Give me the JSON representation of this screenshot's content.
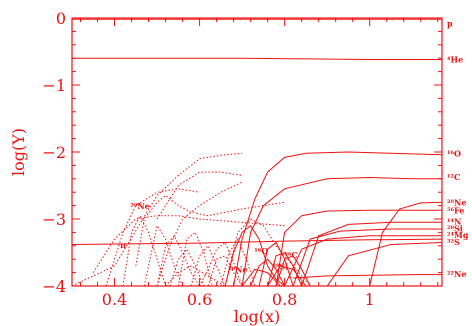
{
  "chart_data": {
    "type": "line",
    "xlabel": "log(x)",
    "ylabel": "log(Y)",
    "xlim": [
      0.3,
      1.17
    ],
    "ylim": [
      -4,
      0
    ],
    "x_ticks": [
      0.4,
      0.6,
      0.8,
      1
    ],
    "x_tick_labels": [
      "0.4",
      "0.6",
      "0.8",
      "1"
    ],
    "y_ticks": [
      0,
      -1,
      -2,
      -3,
      -4
    ],
    "y_tick_labels": [
      "0",
      "−1",
      "−2",
      "−3",
      "−4"
    ],
    "colors": {
      "curves": "#ee1111",
      "axes": "#ee1111",
      "background": "#ffffff"
    },
    "right_labels": [
      {
        "text": "p",
        "y": -0.08
      },
      {
        "text": "⁴He",
        "y": -0.62
      },
      {
        "text": "¹⁶O",
        "y": -2.02
      },
      {
        "text": "¹²C",
        "y": -2.37
      },
      {
        "text": "²⁰Ne",
        "y": -2.75
      },
      {
        "text": "⁵⁶Fe",
        "y": -2.87
      },
      {
        "text": "¹⁴N",
        "y": -3.04
      },
      {
        "text": "²⁸Si",
        "y": -3.14
      },
      {
        "text": "²⁴Mg",
        "y": -3.24
      },
      {
        "text": "³²S",
        "y": -3.34
      },
      {
        "text": "²²Ne",
        "y": -3.82
      }
    ],
    "inline_labels": [
      {
        "text": "²⁰Ne",
        "x": 0.46,
        "y": -2.85
      },
      {
        "text": "n",
        "x": 0.42,
        "y": -3.43
      },
      {
        "text": "¹⁶O",
        "x": 0.745,
        "y": -3.52
      },
      {
        "text": "⁵⁶C",
        "x": 0.815,
        "y": -3.58
      },
      {
        "text": "²⁸Si",
        "x": 0.79,
        "y": -3.75
      },
      {
        "text": "²⁰Ne",
        "x": 0.69,
        "y": -3.8
      }
    ],
    "series": [
      {
        "style": "solid",
        "x": [
          0.3,
          1.17
        ],
        "y": [
          -0.02,
          -0.02
        ]
      },
      {
        "style": "solid",
        "x": [
          0.3,
          0.7,
          1.0,
          1.17
        ],
        "y": [
          -0.6,
          -0.6,
          -0.62,
          -0.62
        ]
      },
      {
        "style": "solid",
        "x": [
          0.3,
          0.6,
          0.8,
          1.0,
          1.17
        ],
        "y": [
          -3.38,
          -3.36,
          -3.33,
          -3.31,
          -3.3
        ]
      },
      {
        "style": "solid",
        "x": [
          0.68,
          0.7,
          0.73,
          0.76,
          0.8,
          0.85,
          0.95,
          1.05,
          1.17
        ],
        "y": [
          -4.0,
          -3.3,
          -2.7,
          -2.3,
          -2.08,
          -2.02,
          -2.0,
          -2.02,
          -2.04
        ]
      },
      {
        "style": "solid",
        "x": [
          0.7,
          0.72,
          0.75,
          0.8,
          0.9,
          1.0,
          1.1,
          1.17
        ],
        "y": [
          -4.0,
          -3.2,
          -2.8,
          -2.55,
          -2.4,
          -2.38,
          -2.4,
          -2.4
        ]
      },
      {
        "style": "solid",
        "x": [
          0.66,
          0.68,
          0.7,
          0.72,
          0.74,
          0.76,
          0.78,
          0.8
        ],
        "y": [
          -4.0,
          -3.5,
          -3.2,
          -3.1,
          -3.3,
          -3.7,
          -3.9,
          -4.0
        ]
      },
      {
        "style": "solid",
        "x": [
          0.78,
          0.8,
          0.84,
          0.9,
          1.0,
          1.17
        ],
        "y": [
          -4.0,
          -3.2,
          -2.95,
          -2.88,
          -2.87,
          -2.87
        ]
      },
      {
        "style": "solid",
        "x": [
          0.84,
          0.88,
          0.95,
          1.05,
          1.17
        ],
        "y": [
          -4.0,
          -3.25,
          -3.08,
          -3.05,
          -3.05
        ]
      },
      {
        "style": "solid",
        "x": [
          0.82,
          0.86,
          0.93,
          1.05,
          1.17
        ],
        "y": [
          -4.0,
          -3.3,
          -3.18,
          -3.15,
          -3.15
        ]
      },
      {
        "style": "solid",
        "x": [
          0.8,
          0.84,
          0.9,
          1.0,
          1.17
        ],
        "y": [
          -4.0,
          -3.45,
          -3.3,
          -3.25,
          -3.25
        ]
      },
      {
        "style": "solid",
        "x": [
          0.9,
          0.95,
          1.05,
          1.17
        ],
        "y": [
          -4.0,
          -3.55,
          -3.38,
          -3.35
        ]
      },
      {
        "style": "solid",
        "x": [
          1.0,
          1.03,
          1.07,
          1.12,
          1.17
        ],
        "y": [
          -4.0,
          -3.2,
          -2.85,
          -2.76,
          -2.75
        ]
      },
      {
        "style": "solid",
        "x": [
          0.82,
          0.9,
          1.0,
          1.1,
          1.17
        ],
        "y": [
          -3.88,
          -3.85,
          -3.84,
          -3.83,
          -3.83
        ]
      },
      {
        "style": "solid",
        "x": [
          0.74,
          0.76,
          0.78,
          0.8,
          0.82
        ],
        "y": [
          -4.0,
          -3.45,
          -3.35,
          -3.6,
          -4.0
        ]
      },
      {
        "style": "solid",
        "x": [
          0.76,
          0.78,
          0.8,
          0.82,
          0.84
        ],
        "y": [
          -4.0,
          -3.55,
          -3.5,
          -3.7,
          -4.0
        ]
      },
      {
        "style": "solid",
        "x": [
          0.78,
          0.8,
          0.82,
          0.84,
          0.86
        ],
        "y": [
          -4.0,
          -3.6,
          -3.55,
          -3.75,
          -4.0
        ]
      },
      {
        "style": "solid",
        "x": [
          0.72,
          0.74,
          0.76,
          0.78,
          0.8
        ],
        "y": [
          -4.0,
          -3.7,
          -3.6,
          -3.75,
          -4.0
        ]
      },
      {
        "style": "solid",
        "x": [
          0.7,
          0.73,
          0.76,
          0.79
        ],
        "y": [
          -4.0,
          -3.75,
          -3.8,
          -4.0
        ]
      },
      {
        "style": "solid",
        "x": [
          0.76,
          0.79,
          0.82,
          0.85
        ],
        "y": [
          -4.0,
          -3.7,
          -3.75,
          -4.0
        ]
      },
      {
        "style": "dotted",
        "x": [
          0.3,
          0.4,
          0.5,
          0.55,
          0.6,
          0.65,
          0.7
        ],
        "y": [
          -4.0,
          -3.7,
          -2.65,
          -2.35,
          -2.1,
          -2.05,
          -2.02
        ]
      },
      {
        "style": "dotted",
        "x": [
          0.5,
          0.55,
          0.6,
          0.65,
          0.7
        ],
        "y": [
          -3.0,
          -2.5,
          -2.3,
          -2.3,
          -2.35
        ]
      },
      {
        "style": "dotted",
        "x": [
          0.38,
          0.42,
          0.45,
          0.5,
          0.55,
          0.6
        ],
        "y": [
          -4.0,
          -3.2,
          -2.8,
          -2.6,
          -2.55,
          -2.6
        ]
      },
      {
        "style": "dotted",
        "x": [
          0.45,
          0.47,
          0.5,
          0.52,
          0.55,
          0.58,
          0.62,
          0.66,
          0.7,
          0.75,
          0.8
        ],
        "y": [
          -3.7,
          -3.0,
          -2.75,
          -2.65,
          -2.8,
          -2.9,
          -2.95,
          -2.9,
          -2.85,
          -2.8,
          -2.75
        ]
      },
      {
        "style": "dotted",
        "x": [
          0.35,
          0.4,
          0.45,
          0.5,
          0.55,
          0.6,
          0.7,
          0.8
        ],
        "y": [
          -3.8,
          -3.3,
          -3.0,
          -2.95,
          -2.95,
          -3.0,
          -3.05,
          -3.1
        ]
      },
      {
        "style": "dotted",
        "x": [
          0.5,
          0.53,
          0.56,
          0.6,
          0.65,
          0.7
        ],
        "y": [
          -4.0,
          -3.4,
          -3.0,
          -2.8,
          -2.6,
          -2.45
        ]
      },
      {
        "style": "dotted",
        "x": [
          0.42,
          0.44,
          0.46,
          0.48,
          0.5,
          0.52
        ],
        "y": [
          -4.0,
          -3.2,
          -2.95,
          -3.2,
          -3.6,
          -4.0
        ]
      },
      {
        "style": "dotted",
        "x": [
          0.47,
          0.5,
          0.52,
          0.54,
          0.56
        ],
        "y": [
          -4.0,
          -3.1,
          -3.3,
          -3.7,
          -4.0
        ]
      },
      {
        "style": "dotted",
        "x": [
          0.5,
          0.52,
          0.54,
          0.56,
          0.58,
          0.6
        ],
        "y": [
          -4.0,
          -3.4,
          -3.25,
          -3.5,
          -3.8,
          -4.0
        ]
      },
      {
        "style": "dotted",
        "x": [
          0.53,
          0.55,
          0.57,
          0.59,
          0.61
        ],
        "y": [
          -4.0,
          -3.6,
          -3.45,
          -3.7,
          -4.0
        ]
      },
      {
        "style": "dotted",
        "x": [
          0.55,
          0.57,
          0.59,
          0.61,
          0.63
        ],
        "y": [
          -4.0,
          -3.3,
          -3.2,
          -3.5,
          -4.0
        ]
      },
      {
        "style": "dotted",
        "x": [
          0.58,
          0.6,
          0.62,
          0.64,
          0.66
        ],
        "y": [
          -4.0,
          -3.55,
          -3.4,
          -3.7,
          -4.0
        ]
      },
      {
        "style": "dotted",
        "x": [
          0.6,
          0.62,
          0.64,
          0.66,
          0.68,
          0.7
        ],
        "y": [
          -4.0,
          -3.75,
          -3.45,
          -3.35,
          -3.65,
          -4.0
        ]
      },
      {
        "style": "dotted",
        "x": [
          0.62,
          0.64,
          0.66,
          0.68,
          0.7
        ],
        "y": [
          -4.0,
          -3.6,
          -3.55,
          -3.8,
          -4.0
        ]
      },
      {
        "style": "dotted",
        "x": [
          0.65,
          0.67,
          0.69,
          0.71,
          0.73
        ],
        "y": [
          -4.0,
          -3.5,
          -3.3,
          -3.6,
          -4.0
        ]
      },
      {
        "style": "dotted",
        "x": [
          0.66,
          0.69,
          0.72,
          0.75,
          0.78,
          0.82,
          0.86
        ],
        "y": [
          -4.0,
          -3.2,
          -3.0,
          -3.1,
          -3.4,
          -3.7,
          -4.0
        ]
      },
      {
        "style": "dotted",
        "x": [
          0.52,
          0.55,
          0.58,
          0.62,
          0.66
        ],
        "y": [
          -4.0,
          -3.8,
          -3.7,
          -3.85,
          -4.0
        ]
      }
    ]
  }
}
